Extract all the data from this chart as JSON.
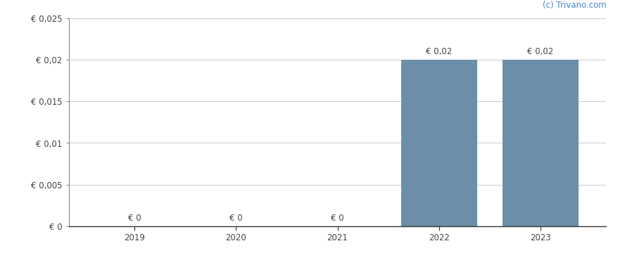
{
  "categories": [
    "2019",
    "2020",
    "2021",
    "2022",
    "2023"
  ],
  "values": [
    0,
    0,
    0,
    0.02,
    0.02
  ],
  "bar_color": "#6b8fa8",
  "bar_labels": [
    "€ 0",
    "€ 0",
    "€ 0",
    "€ 0,02",
    "€ 0,02"
  ],
  "ylim": [
    0,
    0.025
  ],
  "yticks": [
    0,
    0.005,
    0.01,
    0.015,
    0.02,
    0.025
  ],
  "ytick_labels": [
    "€ 0",
    "€ 0,005",
    "€ 0,01",
    "€ 0,015",
    "€ 0,02",
    "€ 0,025"
  ],
  "watermark": "(c) Trivano.com",
  "watermark_color": "#4488cc",
  "background_color": "#ffffff",
  "grid_color": "#cccccc",
  "bar_width": 0.75,
  "label_fontsize": 8.5,
  "tick_fontsize": 8.5,
  "watermark_fontsize": 8.5
}
